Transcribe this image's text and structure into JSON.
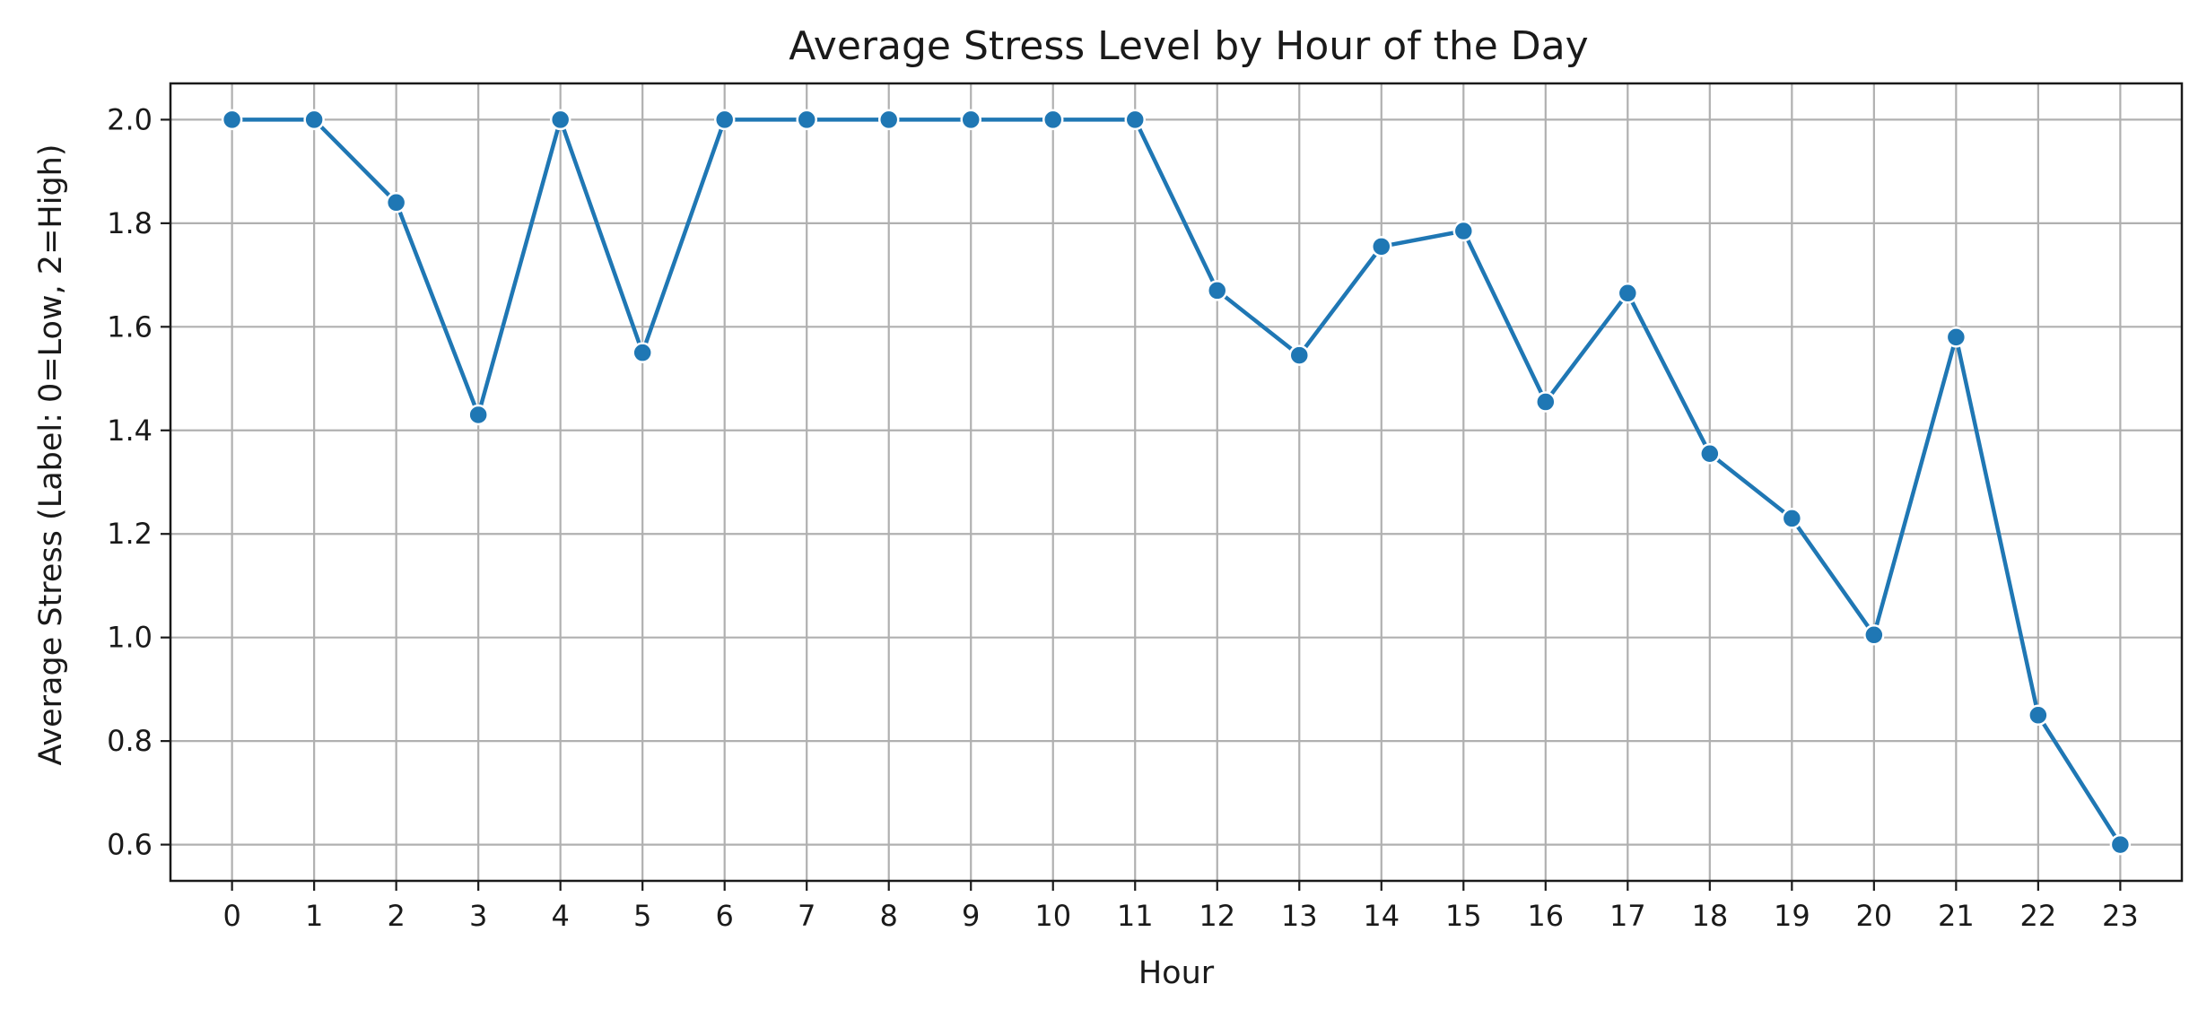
{
  "chart_data": {
    "type": "line",
    "title": "Average Stress Level by Hour of the Day",
    "xlabel": "Hour",
    "ylabel": "Average Stress (Label: 0=Low, 2=High)",
    "x": [
      0,
      1,
      2,
      3,
      4,
      5,
      6,
      7,
      8,
      9,
      10,
      11,
      12,
      13,
      14,
      15,
      16,
      17,
      18,
      19,
      20,
      21,
      22,
      23
    ],
    "x_tick_labels": [
      "0",
      "1",
      "2",
      "3",
      "4",
      "5",
      "6",
      "7",
      "8",
      "9",
      "10",
      "11",
      "12",
      "13",
      "14",
      "15",
      "16",
      "17",
      "18",
      "19",
      "20",
      "21",
      "22",
      "23"
    ],
    "series": [
      {
        "values": [
          2.0,
          2.0,
          1.84,
          1.43,
          2.0,
          1.55,
          2.0,
          2.0,
          2.0,
          2.0,
          2.0,
          2.0,
          1.67,
          1.545,
          1.755,
          1.785,
          1.455,
          1.665,
          1.355,
          1.23,
          1.005,
          1.58,
          0.85,
          0.6
        ],
        "color": "#1f77b4",
        "marker": "circle"
      }
    ],
    "y_ticks": [
      0.6,
      0.8,
      1.0,
      1.2,
      1.4,
      1.6,
      1.8,
      2.0
    ],
    "y_tick_labels": [
      "0.6",
      "0.8",
      "1.0",
      "1.2",
      "1.4",
      "1.6",
      "1.8",
      "2.0"
    ],
    "xlim": [
      -0.75,
      23.75
    ],
    "ylim": [
      0.53,
      2.07
    ],
    "grid": true,
    "colors": {
      "line": "#1f77b4",
      "grid": "#b0b0b0",
      "axes": "#1a1a1a"
    }
  }
}
